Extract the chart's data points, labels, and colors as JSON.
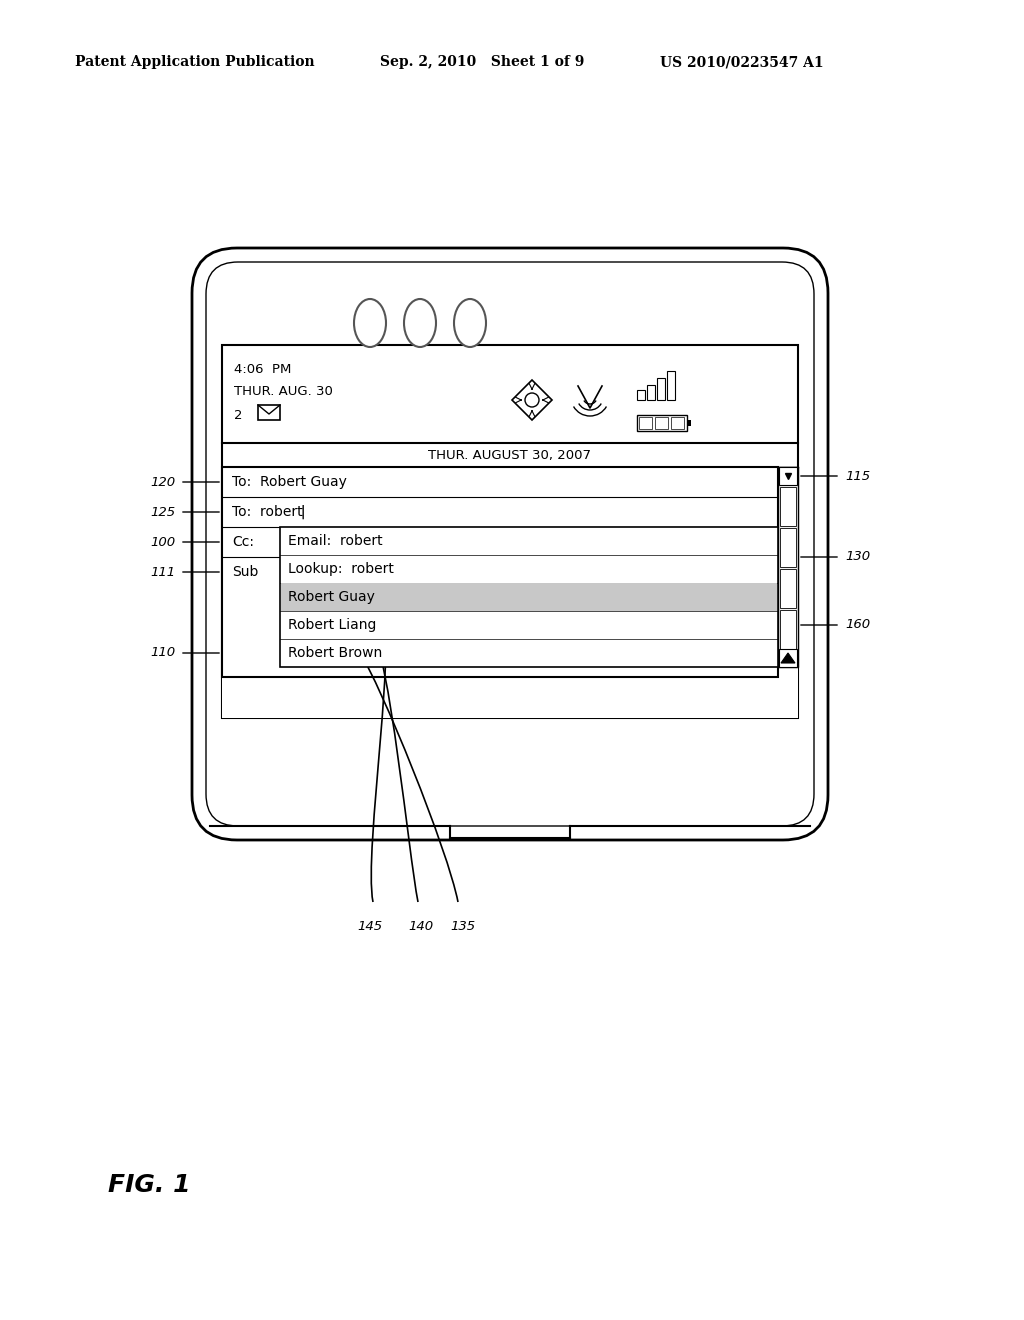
{
  "bg_color": "#ffffff",
  "header_left": "Patent Application Publication",
  "header_mid": "Sep. 2, 2010   Sheet 1 of 9",
  "header_right": "US 2010/0223547 A1",
  "fig_label": "FIG. 1",
  "status_time": "4:06  PM",
  "status_date1": "THUR. AUG. 30",
  "status_num": "2",
  "date_bar": "THUR. AUGUST 30, 2007",
  "to1": "To:  Robert Guay",
  "to2": "To:  robert▏",
  "cc": "Cc:",
  "sub": "Sub",
  "email_row": "Email:  robert",
  "lookup_row": "Lookup:  robert",
  "name1": "Robert Guay",
  "name2": "Robert Liang",
  "name3": "Robert Brown",
  "label_120": "120",
  "label_125": "125",
  "label_100": "100",
  "label_111": "111",
  "label_110": "110",
  "label_115": "115",
  "label_130": "130",
  "label_145": "145",
  "label_140": "140",
  "label_135": "135",
  "label_160": "160"
}
